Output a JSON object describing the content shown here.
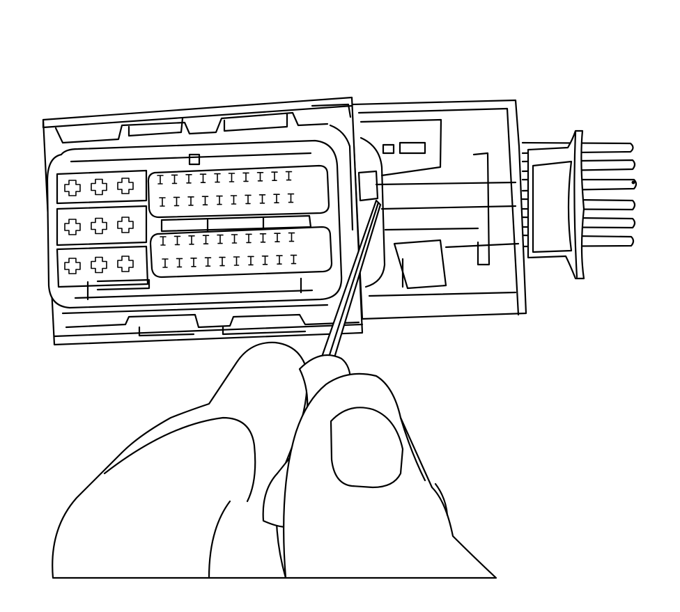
{
  "figure": {
    "type": "line-art-illustration",
    "colors": {
      "line": "#000000",
      "background": "#ffffff"
    },
    "terminal_cavities": {
      "upper_row_a": 10,
      "upper_row_b": 10,
      "lower_row_a": 10,
      "lower_row_b": 10,
      "large_cavities_left_block": 9
    }
  }
}
